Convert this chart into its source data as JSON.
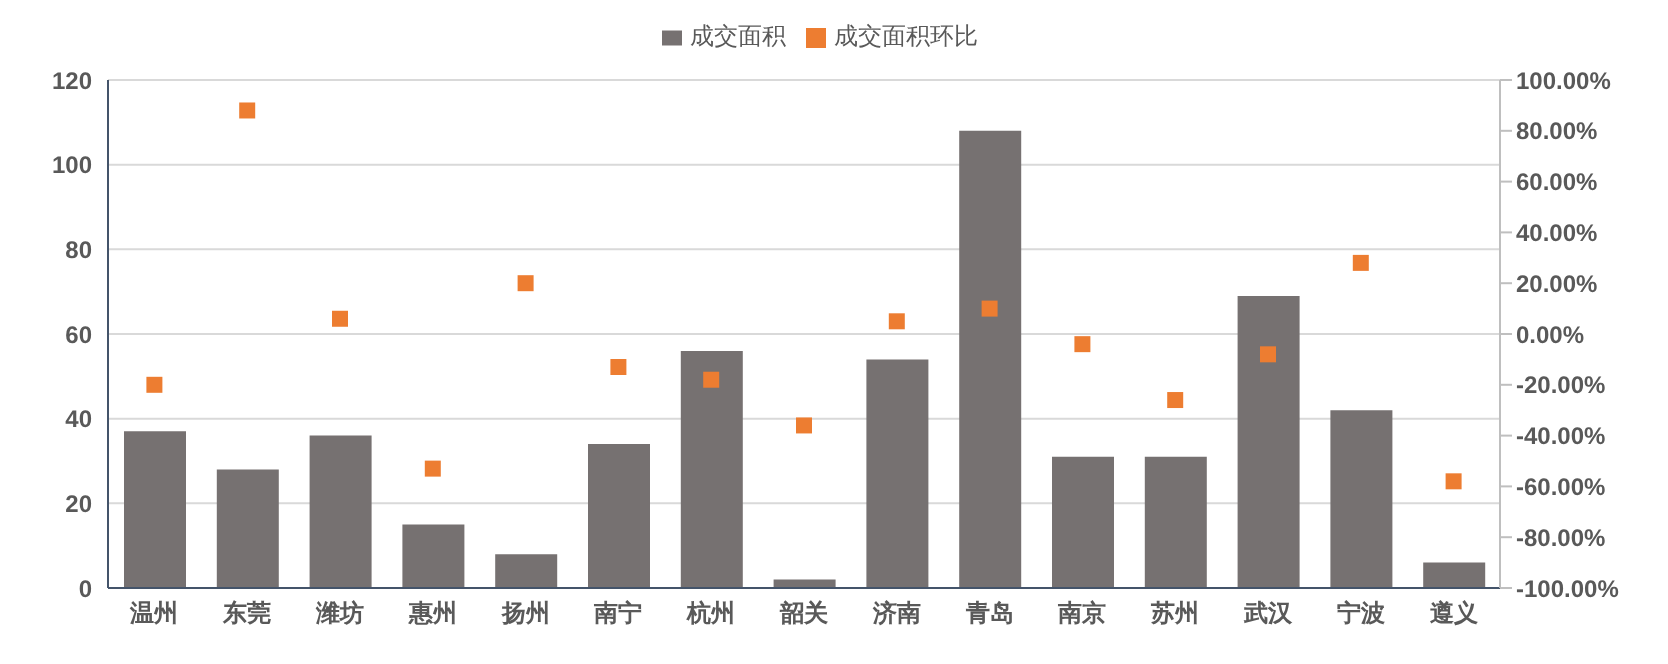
{
  "chart_data": {
    "type": "bar",
    "categories": [
      "温州",
      "东莞",
      "潍坊",
      "惠州",
      "扬州",
      "南宁",
      "杭州",
      "韶关",
      "济南",
      "青岛",
      "南京",
      "苏州",
      "武汉",
      "宁波",
      "遵义"
    ],
    "series": [
      {
        "name": "成交面积",
        "color": "#767171",
        "values": [
          37,
          28,
          36,
          15,
          8,
          34,
          56,
          2,
          54,
          108,
          31,
          31,
          69,
          42,
          6
        ]
      },
      {
        "name": "成交面积环比",
        "type": "scatter",
        "axis": "y2",
        "color": "#ed7d31",
        "marker": "square",
        "values": [
          -20,
          88,
          6,
          -53,
          20,
          -13,
          -18,
          -36,
          5,
          10,
          -4,
          -26,
          -8,
          28,
          -58
        ]
      }
    ],
    "ylim": [
      0,
      120
    ],
    "yticks": [
      0,
      20,
      40,
      60,
      80,
      100,
      120
    ],
    "y2lim": [
      -100,
      100
    ],
    "y2ticks": [
      {
        "value": -100,
        "label": "-100.00%"
      },
      {
        "value": -80,
        "label": "-80.00%"
      },
      {
        "value": -60,
        "label": "-60.00%"
      },
      {
        "value": -40,
        "label": "-40.00%"
      },
      {
        "value": -20,
        "label": "-20.00%"
      },
      {
        "value": 0,
        "label": "0.00%"
      },
      {
        "value": 20,
        "label": "20.00%"
      },
      {
        "value": 40,
        "label": "40.00%"
      },
      {
        "value": 60,
        "label": "60.00%"
      },
      {
        "value": 80,
        "label": "80.00%"
      },
      {
        "value": 100,
        "label": "100.00%"
      }
    ],
    "grid": "y",
    "legend": "top"
  }
}
